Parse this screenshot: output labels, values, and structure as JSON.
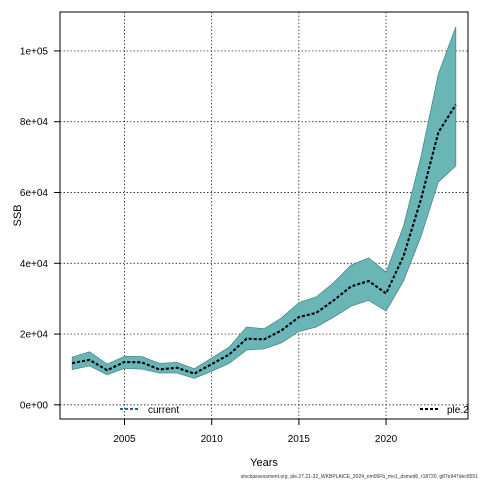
{
  "chart_data": {
    "type": "area",
    "xlabel": "Years",
    "ylabel": "SSB",
    "xlim": [
      2001.3,
      2024.7
    ],
    "ylim": [
      -4000,
      111000
    ],
    "x_ticks": [
      2005,
      2010,
      2015,
      2020
    ],
    "x_tick_labels": [
      "2005",
      "2010",
      "2015",
      "2020"
    ],
    "y_ticks": [
      0,
      20000,
      40000,
      60000,
      80000,
      100000
    ],
    "y_tick_labels": [
      "0e+00",
      "2e+04",
      "4e+04",
      "6e+04",
      "8e+04",
      "1e+05"
    ],
    "grid": true,
    "x": [
      2002,
      2003,
      2004,
      2005,
      2006,
      2007,
      2008,
      2009,
      2010,
      2011,
      2012,
      2013,
      2014,
      2015,
      2016,
      2017,
      2018,
      2019,
      2020,
      2021,
      2022,
      2023,
      2024
    ],
    "series": [
      {
        "name": "current",
        "color": "#1a5fa8",
        "values": [
          11800,
          12700,
          9800,
          12100,
          12000,
          10000,
          10500,
          8800,
          11500,
          14200,
          18700,
          18500,
          21000,
          24800,
          26000,
          29500,
          33500,
          35000,
          31500,
          42000,
          58000,
          77000,
          84800
        ]
      },
      {
        "name": "ple.2",
        "color": "#000000",
        "upper": [
          13500,
          15000,
          11500,
          13700,
          13600,
          11700,
          12000,
          10200,
          13200,
          16300,
          22000,
          21500,
          24500,
          28900,
          30500,
          34500,
          39500,
          41500,
          37500,
          50500,
          70000,
          93500,
          106800
        ],
        "values": [
          11800,
          12700,
          9800,
          12100,
          12000,
          10000,
          10500,
          8800,
          11500,
          14200,
          18700,
          18500,
          21000,
          24800,
          26000,
          29500,
          33500,
          35000,
          31500,
          42000,
          58000,
          77000,
          84800
        ],
        "lower": [
          10000,
          11000,
          8500,
          10300,
          10100,
          9000,
          9000,
          7500,
          9500,
          11700,
          15500,
          15800,
          17500,
          20700,
          22000,
          24800,
          27900,
          29500,
          26500,
          35000,
          47500,
          63000,
          67500
        ]
      }
    ],
    "legend": [
      {
        "label": "current",
        "position": "bottom-left"
      },
      {
        "label": "ple.2",
        "position": "bottom-right"
      }
    ],
    "band_color": "#6ab5b5",
    "footnote": "stockassessment.org, ple.27.21-32_WKBPLAICE_2024_nm05Fb_mo1_dsmed6, r18720, g87e947dec8551"
  }
}
